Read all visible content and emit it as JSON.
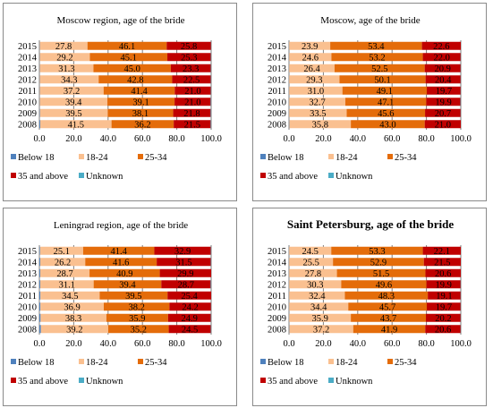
{
  "colors": {
    "below18": "#4f81bd",
    "age18_24": "#fac090",
    "age25_34": "#e46c0a",
    "age35plus": "#c00000",
    "unknown": "#4bacc6",
    "grid": "#7f7f7f"
  },
  "chart_data": [
    {
      "type": "bar",
      "orientation": "horizontal",
      "stacked": true,
      "title": "Moscow region, age of the bride",
      "categories": [
        "2015",
        "2014",
        "2013",
        "2012",
        "2011",
        "2010",
        "2009",
        "2008"
      ],
      "xlim": [
        0,
        100
      ],
      "xticks": [
        "0.0",
        "20.0",
        "40.0",
        "60.0",
        "80.0",
        "100.0"
      ],
      "grid": true,
      "legend_position": "bottom",
      "series": [
        {
          "name": "Below 18",
          "color": "#4f81bd",
          "values": [
            0.2,
            0.2,
            0.2,
            0.2,
            0.2,
            0.2,
            0.3,
            0.5
          ],
          "labels": [
            "",
            "",
            "",
            "",
            "",
            "",
            "",
            ""
          ]
        },
        {
          "name": "18-24",
          "color": "#fac090",
          "values": [
            27.8,
            29.2,
            31.3,
            34.3,
            37.2,
            39.4,
            39.5,
            41.5
          ],
          "labels": [
            "27.8",
            "29.2",
            "31.3",
            "34.3",
            "37.2",
            "39.4",
            "39.5",
            "41.5"
          ]
        },
        {
          "name": "25-34",
          "color": "#e46c0a",
          "values": [
            46.1,
            45.1,
            45.0,
            42.8,
            41.4,
            39.1,
            38.1,
            36.2
          ],
          "labels": [
            "46.1",
            "45.1",
            "45.0",
            "42.8",
            "41.4",
            "39.1",
            "38.1",
            "36.2"
          ]
        },
        {
          "name": "35 and above",
          "color": "#c00000",
          "values": [
            25.8,
            25.3,
            23.3,
            22.5,
            21.0,
            21.0,
            21.8,
            21.5
          ],
          "labels": [
            "25.8",
            "25.3",
            "23.3",
            "22.5",
            "21.0",
            "21.0",
            "21.8",
            "21.5"
          ]
        },
        {
          "name": "Unknown",
          "color": "#4bacc6",
          "values": [
            0.1,
            0.2,
            0.2,
            0.2,
            0.2,
            0.3,
            0.3,
            0.3
          ],
          "labels": [
            "",
            "",
            "",
            "",
            "",
            "",
            "",
            ""
          ]
        }
      ]
    },
    {
      "type": "bar",
      "orientation": "horizontal",
      "stacked": true,
      "title": "Moscow, age of the bride",
      "categories": [
        "2015",
        "2014",
        "2013",
        "2012",
        "2011",
        "2010",
        "2009",
        "2008"
      ],
      "xlim": [
        0,
        100
      ],
      "xticks": [
        "0.0",
        "20.0",
        "40.0",
        "60.0",
        "80.0",
        "100.0"
      ],
      "grid": true,
      "legend_position": "bottom",
      "series": [
        {
          "name": "Below 18",
          "color": "#4f81bd",
          "values": [
            0.1,
            0.1,
            0.1,
            0.1,
            0.1,
            0.1,
            0.1,
            0.2
          ],
          "labels": [
            "",
            "",
            "",
            "",
            "",
            "",
            "",
            ""
          ]
        },
        {
          "name": "18-24",
          "color": "#fac090",
          "values": [
            23.9,
            24.6,
            26.4,
            29.3,
            31.0,
            32.7,
            33.5,
            35.8
          ],
          "labels": [
            "23.9",
            "24.6",
            "26.4",
            "29.3",
            "31.0",
            "32.7",
            "33.5",
            "35.8"
          ]
        },
        {
          "name": "25-34",
          "color": "#e46c0a",
          "values": [
            53.4,
            53.2,
            52.5,
            50.1,
            49.1,
            47.1,
            45.6,
            43.0
          ],
          "labels": [
            "53.4",
            "53.2",
            "52.5",
            "50.1",
            "49.1",
            "47.1",
            "45.6",
            "43.0"
          ]
        },
        {
          "name": "35 and above",
          "color": "#c00000",
          "values": [
            22.6,
            22.0,
            20.9,
            20.4,
            19.7,
            19.9,
            20.7,
            21.0
          ],
          "labels": [
            "22.6",
            "22.0",
            "20.9",
            "20.4",
            "19.7",
            "19.9",
            "20.7",
            "21.0"
          ]
        },
        {
          "name": "Unknown",
          "color": "#4bacc6",
          "values": [
            0.0,
            0.1,
            0.1,
            0.1,
            0.1,
            0.2,
            0.1,
            0.0
          ],
          "labels": [
            "",
            "",
            "",
            "",
            "",
            "",
            "",
            ""
          ]
        }
      ]
    },
    {
      "type": "bar",
      "orientation": "horizontal",
      "stacked": true,
      "title": "Leningrad region, age of the bride",
      "categories": [
        "2015",
        "2014",
        "2013",
        "2012",
        "2011",
        "2010",
        "2009",
        "2008"
      ],
      "xlim": [
        0,
        100
      ],
      "xticks": [
        "0.0",
        "20.0",
        "40.0",
        "60.0",
        "80.0",
        "100.0"
      ],
      "grid": true,
      "legend_position": "bottom",
      "series": [
        {
          "name": "Below 18",
          "color": "#4f81bd",
          "values": [
            0.4,
            0.5,
            0.5,
            0.5,
            0.6,
            0.6,
            0.7,
            0.9
          ],
          "labels": [
            "",
            "",
            "",
            "",
            "",
            "",
            "",
            ""
          ]
        },
        {
          "name": "18-24",
          "color": "#fac090",
          "values": [
            25.1,
            26.2,
            28.7,
            31.1,
            34.5,
            36.9,
            38.3,
            39.2
          ],
          "labels": [
            "25.1",
            "26.2",
            "28.7",
            "31.1",
            "34.5",
            "36.9",
            "38.3",
            "39.2"
          ]
        },
        {
          "name": "25-34",
          "color": "#e46c0a",
          "values": [
            41.4,
            41.6,
            40.9,
            39.4,
            39.5,
            38.2,
            35.9,
            35.2
          ],
          "labels": [
            "41.4",
            "41.6",
            "40.9",
            "39.4",
            "39.5",
            "38.2",
            "35.9",
            "35.2"
          ]
        },
        {
          "name": "35 and above",
          "color": "#c00000",
          "values": [
            32.9,
            31.5,
            29.9,
            28.7,
            25.4,
            24.2,
            24.9,
            24.5
          ],
          "labels": [
            "32.9",
            "31.5",
            "29.9",
            "28.7",
            "25.4",
            "24.2",
            "24.9",
            "24.5"
          ]
        },
        {
          "name": "Unknown",
          "color": "#4bacc6",
          "values": [
            0.2,
            0.2,
            0.0,
            0.3,
            0.0,
            0.1,
            0.2,
            0.2
          ],
          "labels": [
            "",
            "",
            "",
            "",
            "",
            "",
            "",
            ""
          ]
        }
      ]
    },
    {
      "type": "bar",
      "orientation": "horizontal",
      "stacked": true,
      "title": "Saint Petersburg, age of the bride",
      "categories": [
        "2015",
        "2014",
        "2013",
        "2012",
        "2011",
        "2010",
        "2009",
        "2008"
      ],
      "xlim": [
        0,
        100
      ],
      "xticks": [
        "0.0",
        "20.0",
        "40.0",
        "60.0",
        "80.0",
        "100.0"
      ],
      "grid": true,
      "legend_position": "bottom",
      "series": [
        {
          "name": "Below 18",
          "color": "#4f81bd",
          "values": [
            0.1,
            0.1,
            0.1,
            0.1,
            0.1,
            0.1,
            0.1,
            0.2
          ],
          "labels": [
            "",
            "",
            "",
            "",
            "",
            "",
            "",
            ""
          ]
        },
        {
          "name": "18-24",
          "color": "#fac090",
          "values": [
            24.5,
            25.5,
            27.8,
            30.3,
            32.4,
            34.4,
            35.9,
            37.2
          ],
          "labels": [
            "24.5",
            "25.5",
            "27.8",
            "30.3",
            "32.4",
            "34.4",
            "35.9",
            "37.2"
          ]
        },
        {
          "name": "25-34",
          "color": "#e46c0a",
          "values": [
            53.3,
            52.9,
            51.5,
            49.6,
            48.3,
            45.7,
            43.7,
            41.9
          ],
          "labels": [
            "53.3",
            "52.9",
            "51.5",
            "49.6",
            "48.3",
            "45.7",
            "43.7",
            "41.9"
          ]
        },
        {
          "name": "35 and above",
          "color": "#c00000",
          "values": [
            22.1,
            21.5,
            20.6,
            19.9,
            19.1,
            19.7,
            20.2,
            20.6
          ],
          "labels": [
            "22.1",
            "21.5",
            "20.6",
            "19.9",
            "19.1",
            "19.7",
            "20.2",
            "20.6"
          ]
        },
        {
          "name": "Unknown",
          "color": "#4bacc6",
          "values": [
            0.0,
            0.0,
            0.0,
            0.1,
            0.1,
            0.1,
            0.1,
            0.1
          ],
          "labels": [
            "",
            "",
            "",
            "",
            "",
            "",
            "",
            ""
          ]
        }
      ]
    }
  ]
}
